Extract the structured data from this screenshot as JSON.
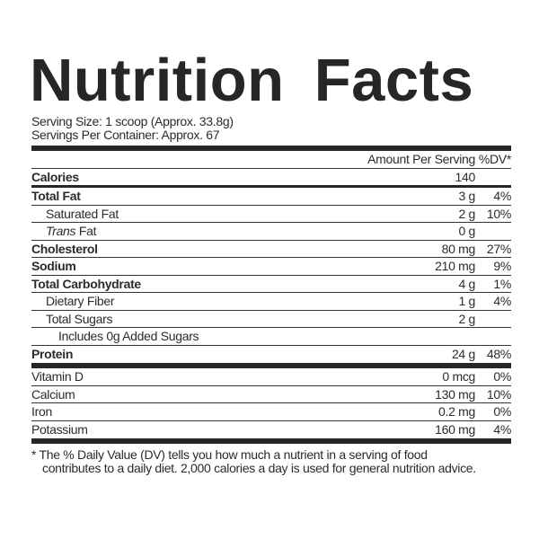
{
  "title": "Nutrition Facts",
  "serving_size": "Serving Size: 1 scoop (Approx. 33.8g)",
  "servings_per_container": "Servings Per Container: Approx. 67",
  "header": {
    "amount": "Amount Per Serving",
    "dv": "%DV*"
  },
  "calories": {
    "label": "Calories",
    "amount": "140"
  },
  "nutrients": [
    {
      "name": "Total Fat",
      "amount": "3 g",
      "dv": "4%"
    },
    {
      "name": "Saturated Fat",
      "amount": "2 g",
      "dv": "10%"
    },
    {
      "name_italic": "Trans",
      "name": " Fat",
      "amount": "0 g",
      "dv": ""
    },
    {
      "name": "Cholesterol",
      "amount": "80 mg",
      "dv": "27%"
    },
    {
      "name": "Sodium",
      "amount": "210 mg",
      "dv": "9%"
    },
    {
      "name": "Total Carbohydrate",
      "amount": "4 g",
      "dv": "1%"
    },
    {
      "name": "Dietary Fiber",
      "amount": "1 g",
      "dv": "4%"
    },
    {
      "name": "Total Sugars",
      "amount": "2 g",
      "dv": ""
    },
    {
      "name": "Includes 0g Added Sugars"
    },
    {
      "name": "Protein",
      "amount": "24 g",
      "dv": "48%"
    }
  ],
  "vitamins": [
    {
      "name": "Vitamin D",
      "amount": "0 mcg",
      "dv": "0%"
    },
    {
      "name": "Calcium",
      "amount": "130 mg",
      "dv": "10%"
    },
    {
      "name": "Iron",
      "amount": "0.2 mg",
      "dv": "0%"
    },
    {
      "name": "Potassium",
      "amount": "160 mg",
      "dv": "4%"
    }
  ],
  "footnote": "* The % Daily Value (DV) tells you how much a nutrient in a serving of food contributes to a daily diet. 2,000 calories a day is used for general nutrition advice."
}
